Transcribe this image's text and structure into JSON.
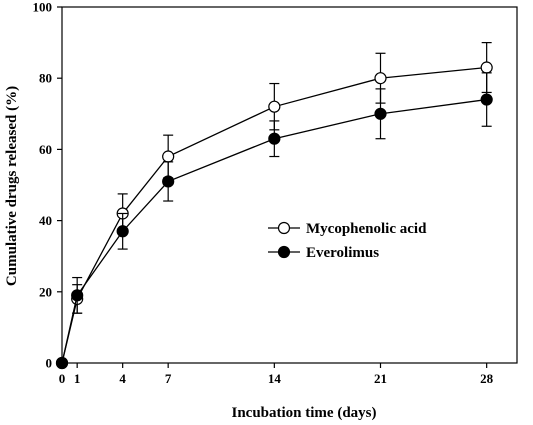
{
  "chart_data": {
    "type": "line",
    "xlabel": "Incubation time (days)",
    "ylabel": "Cumulative drugs released (%)",
    "xlim": [
      0,
      30
    ],
    "ylim": [
      0,
      100
    ],
    "x_ticks": [
      0,
      1,
      4,
      7,
      14,
      21,
      28
    ],
    "y_ticks": [
      0,
      20,
      40,
      60,
      80,
      100
    ],
    "grid": false,
    "legend_position": "center-right",
    "series": [
      {
        "name": "Mycophenolic acid",
        "marker": "open-circle",
        "color": "#000000",
        "x": [
          0,
          1,
          4,
          7,
          14,
          21,
          28
        ],
        "y": [
          0,
          18,
          42,
          58,
          72,
          80,
          83
        ],
        "error": [
          0,
          4,
          5.5,
          6,
          6.5,
          7,
          7
        ]
      },
      {
        "name": "Everolimus",
        "marker": "filled-circle",
        "color": "#000000",
        "x": [
          0,
          1,
          4,
          7,
          14,
          21,
          28
        ],
        "y": [
          0,
          19,
          37,
          51,
          63,
          70,
          74
        ],
        "error": [
          0,
          5,
          5,
          5.5,
          5,
          7,
          7.5
        ]
      }
    ]
  }
}
